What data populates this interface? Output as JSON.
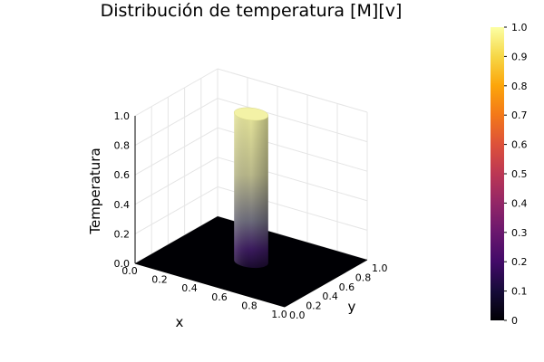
{
  "chart_data": {
    "type": "surface",
    "title": "Distribución de temperatura [M][v]",
    "xlabel": "x",
    "ylabel": "y",
    "zlabel": "Temperatura",
    "xlim": [
      0,
      1
    ],
    "ylim": [
      0,
      1
    ],
    "zlim": [
      0,
      1
    ],
    "x_ticks": [
      "0.0",
      "0.2",
      "0.4",
      "0.6",
      "0.8",
      "1.0"
    ],
    "y_ticks": [
      "0.0",
      "0.2",
      "0.4",
      "0.6",
      "0.8",
      "1.0"
    ],
    "z_ticks": [
      "0.0",
      "0.2",
      "0.4",
      "0.6",
      "0.8",
      "1.0"
    ],
    "colorbar": {
      "colormap": "inferno",
      "range": [
        0,
        1
      ],
      "ticks": [
        "0",
        "0.1",
        "0.2",
        "0.3",
        "0.4",
        "0.5",
        "0.6",
        "0.7",
        "0.8",
        "0.9",
        "1.0"
      ]
    },
    "surface": {
      "base_value": 0,
      "peak_value": 1.0,
      "peak_region": "disk",
      "peak_center": [
        0.5,
        0.5
      ],
      "peak_radius": 0.1
    },
    "grid": true
  }
}
